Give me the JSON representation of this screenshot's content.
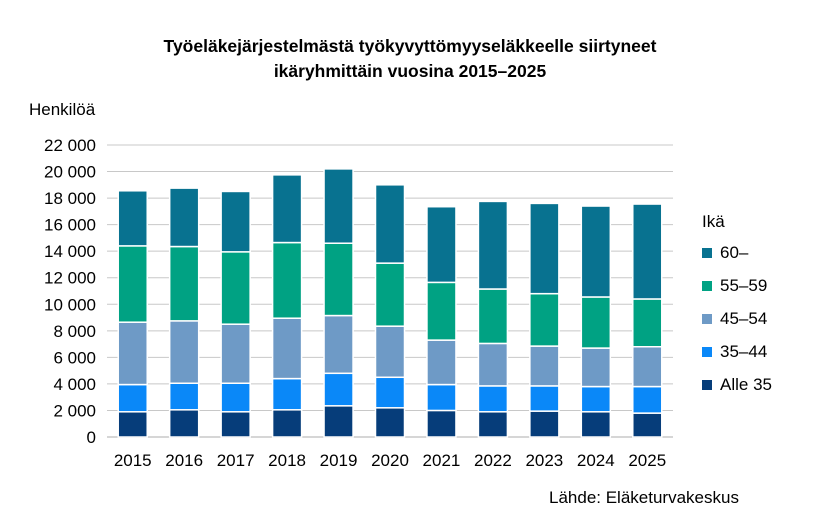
{
  "title_lines": [
    "Työeläkejärjestelmästä  työkyvyttömyyseläkkeelle siirtyneet",
    "ikäryhmittäin vuosina 2015–2025"
  ],
  "y_axis_label": "Henkilöä",
  "legend_title": "Ikä",
  "source": "Lähde: Eläketurvakeskus",
  "colors": {
    "Alle 35": "#063D7A",
    "35–44": "#0A88F8",
    "45–54": "#6E9AC6",
    "55–59": "#00A283",
    "60–": "#087290"
  },
  "chart_data": {
    "type": "bar",
    "stacked": true,
    "title": "Työeläkejärjestelmästä työkyvyttömyyseläkkeelle siirtyneet ikäryhmittäin vuosina 2015–2025",
    "xlabel": "",
    "ylabel": "Henkilöä",
    "ylim": [
      0,
      22000
    ],
    "yticks": [
      0,
      2000,
      4000,
      6000,
      8000,
      10000,
      12000,
      14000,
      16000,
      18000,
      20000,
      22000
    ],
    "ytick_labels": [
      "0",
      "2 000",
      "4 000",
      "6 000",
      "8 000",
      "10 000",
      "12 000",
      "14 000",
      "16 000",
      "18 000",
      "20 000",
      "22 000"
    ],
    "grid": true,
    "legend_position": "right",
    "legend_title": "Ikä",
    "categories": [
      "2015",
      "2016",
      "2017",
      "2018",
      "2019",
      "2020",
      "2021",
      "2022",
      "2023",
      "2024",
      "2025"
    ],
    "series": [
      {
        "name": "Alle 35",
        "values": [
          1900,
          2050,
          1900,
          2050,
          2350,
          2200,
          2000,
          1900,
          1950,
          1900,
          1800
        ]
      },
      {
        "name": "35–44",
        "values": [
          2050,
          2000,
          2150,
          2350,
          2450,
          2300,
          1950,
          1950,
          1900,
          1900,
          2000
        ]
      },
      {
        "name": "45–54",
        "values": [
          4700,
          4700,
          4450,
          4550,
          4350,
          3850,
          3350,
          3200,
          3000,
          2900,
          3000
        ]
      },
      {
        "name": "55–59",
        "values": [
          5750,
          5600,
          5450,
          5700,
          5450,
          4750,
          4350,
          4100,
          3950,
          3850,
          3600
        ]
      },
      {
        "name": "60–",
        "values": [
          4150,
          4400,
          4550,
          5100,
          5600,
          5900,
          5700,
          6600,
          6800,
          6850,
          7150
        ]
      }
    ]
  },
  "source_text": "Lähde: Eläketurvakeskus"
}
